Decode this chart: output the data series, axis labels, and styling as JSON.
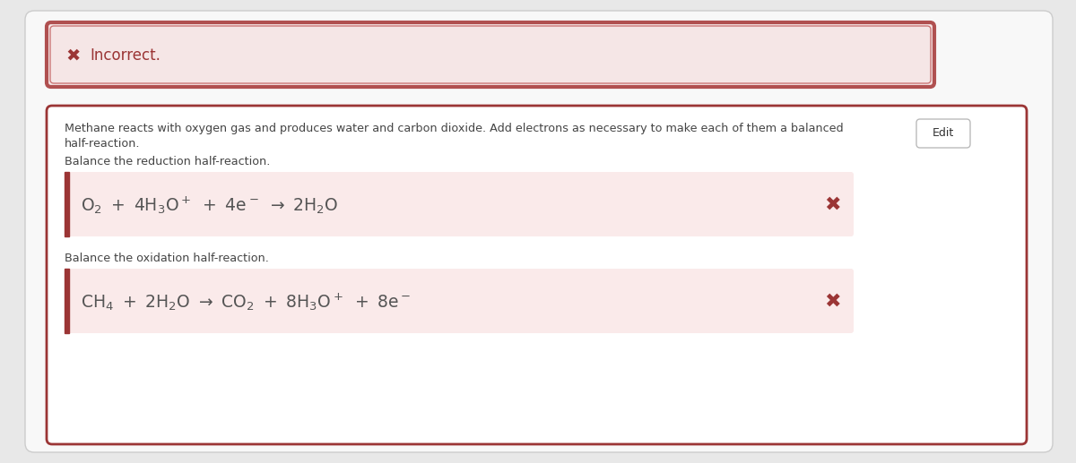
{
  "page_bg": "#e8e8e8",
  "outer_box_bg": "#f8f8f8",
  "outer_box_border": "#cccccc",
  "incorrect_box_bg": "#f5e6e6",
  "incorrect_box_border_outer": "#b05050",
  "incorrect_box_border_inner": "#cc7777",
  "incorrect_x": "✖",
  "incorrect_text": "Incorrect.",
  "x_color": "#9b3535",
  "main_box_bg": "#ffffff",
  "main_box_border": "#9b3535",
  "desc_line1": "Methane reacts with oxygen gas and produces water and carbon dioxide. Add electrons as necessary to make each of them a balanced",
  "desc_line2": "half-reaction.",
  "reduction_label": "Balance the reduction half-reaction.",
  "oxidation_label": "Balance the oxidation half-reaction.",
  "reaction1_bg": "#faeaea",
  "reaction2_bg": "#faeaea",
  "left_bar_color": "#9b3535",
  "edit_text": "Edit",
  "edit_bg": "#ffffff",
  "edit_border": "#bbbbbb",
  "text_color": "#444444",
  "reaction_text_color": "#555555"
}
